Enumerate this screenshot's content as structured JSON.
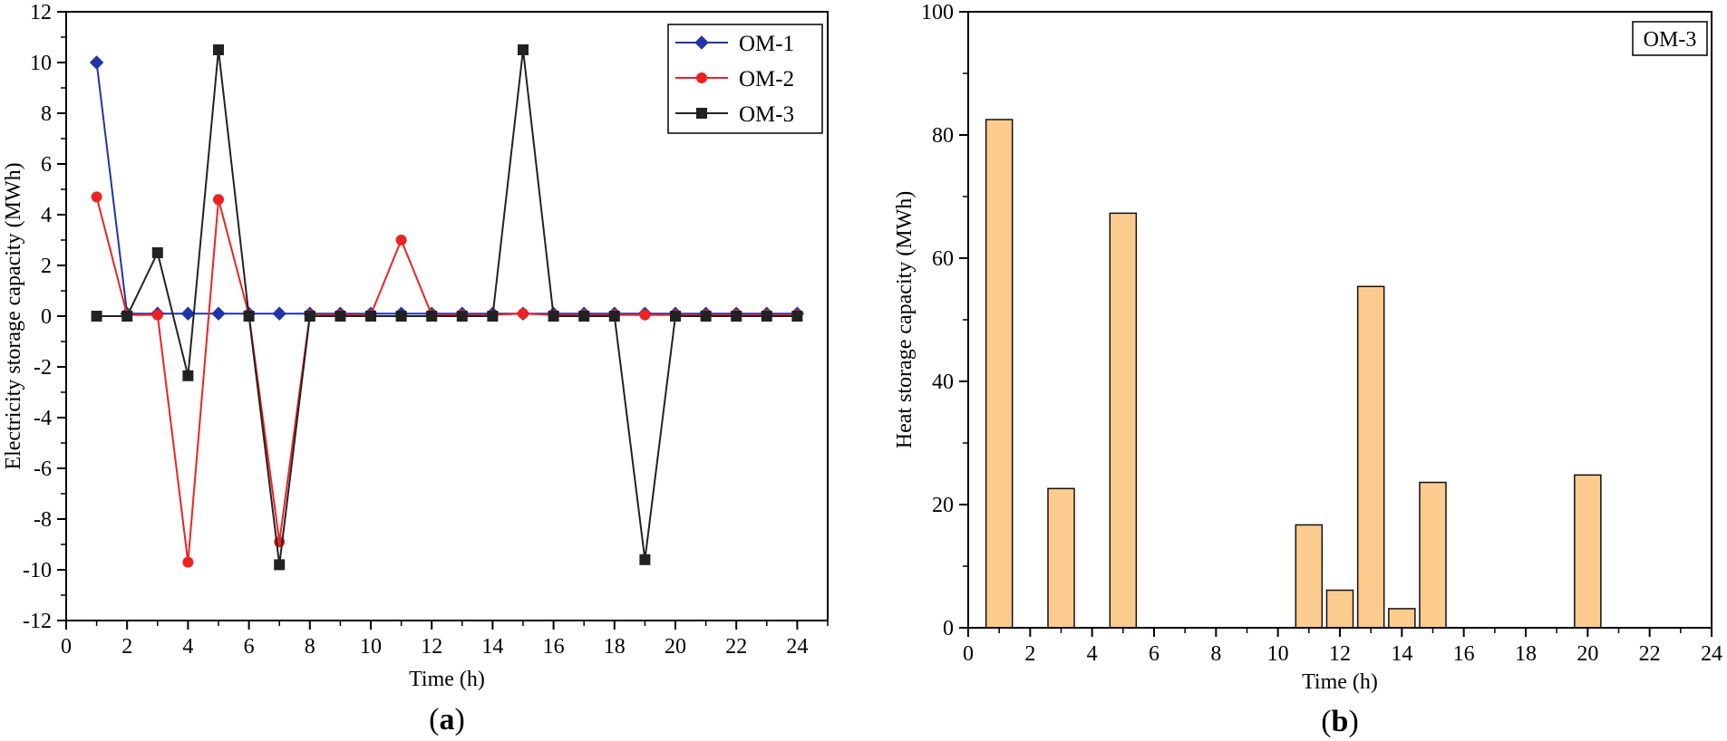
{
  "chart_data": [
    {
      "type": "line",
      "panel_label": "a",
      "xlabel": "Time (h)",
      "ylabel": "Electricity storage capacity (MWh)",
      "xlim": [
        0,
        25
      ],
      "ylim": [
        -12,
        12
      ],
      "xticks": [
        0,
        2,
        4,
        6,
        8,
        10,
        12,
        14,
        16,
        18,
        20,
        22,
        24
      ],
      "yticks": [
        -12,
        -10,
        -8,
        -6,
        -4,
        -2,
        0,
        2,
        4,
        6,
        8,
        10,
        12
      ],
      "x": [
        1,
        2,
        3,
        4,
        5,
        6,
        7,
        8,
        9,
        10,
        11,
        12,
        13,
        14,
        15,
        16,
        17,
        18,
        19,
        20,
        21,
        22,
        23,
        24
      ],
      "legend_position": "top-right",
      "series": [
        {
          "name": "OM-1",
          "color": "#2233aa",
          "marker": "diamond",
          "values": [
            10,
            0.1,
            0.1,
            0.1,
            0.1,
            0.1,
            0.1,
            0.1,
            0.1,
            0.1,
            0.1,
            0.1,
            0.1,
            0.1,
            0.1,
            0.1,
            0.1,
            0.1,
            0.1,
            0.1,
            0.1,
            0.1,
            0.1,
            0.1
          ]
        },
        {
          "name": "OM-2",
          "color": "#ee2222",
          "marker": "circle",
          "values": [
            4.7,
            0.05,
            0.05,
            -9.7,
            4.6,
            0.05,
            -8.9,
            0.05,
            0.05,
            0.05,
            3.0,
            0.05,
            0.05,
            0.05,
            0.1,
            0.05,
            0.05,
            0.05,
            0.05,
            0.05,
            0.05,
            0.05,
            0.05,
            0.05
          ]
        },
        {
          "name": "OM-3",
          "color": "#222222",
          "marker": "square",
          "values": [
            0,
            0,
            2.5,
            -2.35,
            10.5,
            0,
            -9.8,
            0,
            0,
            0,
            0,
            0,
            0,
            0,
            10.5,
            0,
            0,
            0,
            -9.6,
            0,
            0,
            0,
            0,
            0
          ]
        }
      ]
    },
    {
      "type": "bar",
      "panel_label": "b",
      "xlabel": "Time (h)",
      "ylabel": "Heat storage capacity (MWh)",
      "xlim": [
        0,
        24
      ],
      "ylim": [
        0,
        100
      ],
      "xticks": [
        0,
        2,
        4,
        6,
        8,
        10,
        12,
        14,
        16,
        18,
        20,
        22,
        24
      ],
      "yticks": [
        0,
        20,
        40,
        60,
        80,
        100
      ],
      "legend_box": "OM-3",
      "bar_color": "#fccb8e",
      "bar_edge": "#111111",
      "categories": [
        1,
        2,
        3,
        4,
        5,
        6,
        7,
        8,
        9,
        10,
        11,
        12,
        13,
        14,
        15,
        16,
        17,
        18,
        19,
        20,
        21,
        22,
        23,
        24
      ],
      "values": [
        82.5,
        0,
        22.6,
        0,
        67.3,
        0,
        0,
        0,
        0,
        0,
        16.7,
        6.1,
        55.4,
        3.1,
        23.6,
        0,
        0,
        0,
        0,
        24.8,
        0,
        0,
        0,
        0
      ]
    }
  ]
}
